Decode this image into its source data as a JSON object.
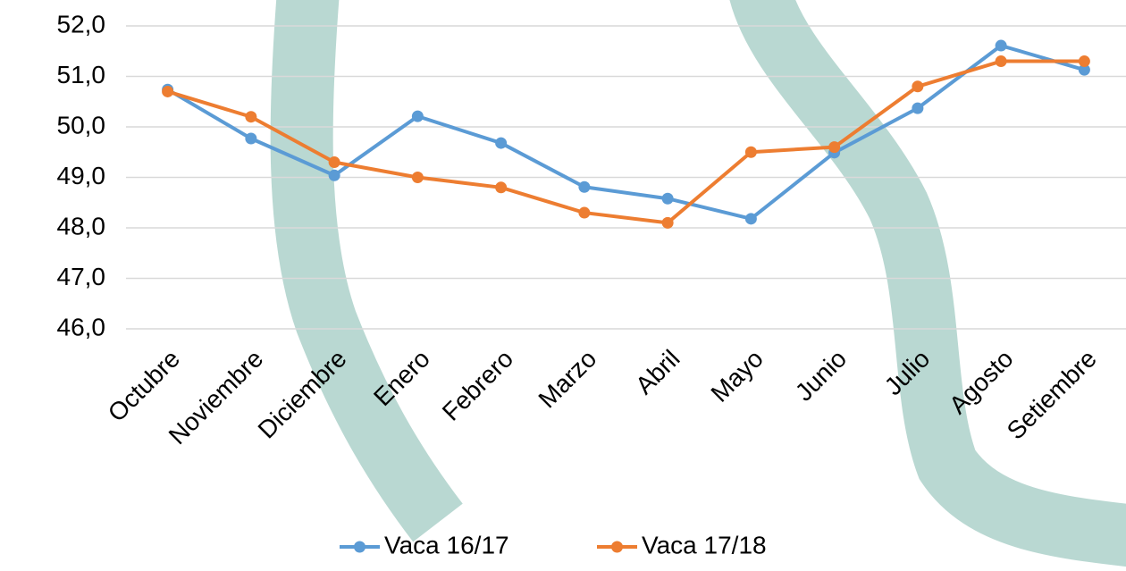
{
  "chart_data": {
    "type": "line",
    "categories": [
      "Octubre",
      "Noviembre",
      "Diciembre",
      "Enero",
      "Febrero",
      "Marzo",
      "Abril",
      "Mayo",
      "Junio",
      "Julio",
      "Agosto",
      "Setiembre"
    ],
    "series": [
      {
        "name": "Vaca 16/17",
        "color": "#5b9bd5",
        "values": [
          50.74,
          49.77,
          49.04,
          50.21,
          49.68,
          48.81,
          48.58,
          48.18,
          49.49,
          50.37,
          51.61,
          51.13
        ]
      },
      {
        "name": "Vaca 17/18",
        "color": "#ed7d31",
        "values": [
          50.7,
          50.2,
          49.3,
          49.0,
          48.8,
          48.3,
          48.1,
          49.5,
          49.6,
          50.8,
          51.3,
          51.3
        ]
      }
    ],
    "ylim": [
      46,
      52
    ],
    "yticks": [
      {
        "value": 46,
        "label": "46,0"
      },
      {
        "value": 47,
        "label": "47,0"
      },
      {
        "value": 48,
        "label": "48,0"
      },
      {
        "value": 49,
        "label": "49,0"
      },
      {
        "value": 50,
        "label": "50,0"
      },
      {
        "value": 51,
        "label": "51,0"
      },
      {
        "value": 52,
        "label": "52,0"
      }
    ],
    "grid": true,
    "legend": "bottom"
  }
}
